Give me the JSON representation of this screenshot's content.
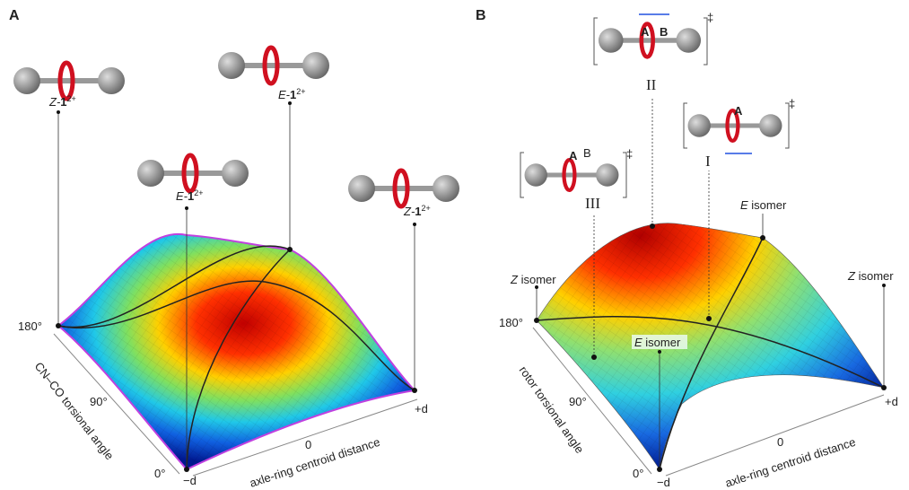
{
  "panel_a": {
    "label": "A",
    "structures": [
      {
        "isomer": "Z-",
        "compound": "1",
        "charge": "2+"
      },
      {
        "isomer": "E-",
        "compound": "1",
        "charge": "2+"
      },
      {
        "isomer": "E-",
        "compound": "1",
        "charge": "2+"
      },
      {
        "isomer": "Z-",
        "compound": "1",
        "charge": "2+"
      }
    ],
    "angle_ticks": [
      "180°",
      "90°",
      "0°"
    ],
    "distance_ticks": [
      "−d",
      "0",
      "+d"
    ],
    "y_axis_label": "CN–CO torsional angle",
    "x_axis_label": "axle-ring centroid distance"
  },
  "panel_b": {
    "label": "B",
    "transition_states": [
      {
        "label": "II",
        "mark": "‡",
        "atoms": [
          "A",
          "B"
        ]
      },
      {
        "label": "I",
        "mark": "‡",
        "atoms": [
          "A"
        ]
      },
      {
        "label": "III",
        "mark": "‡",
        "atoms": [
          "A",
          "B"
        ]
      }
    ],
    "annotations": [
      {
        "isomer": "E",
        "word": "isomer"
      },
      {
        "isomer": "Z",
        "word": "isomer"
      },
      {
        "isomer": "Z",
        "word": "isomer"
      },
      {
        "isomer": "E",
        "word": "isomer"
      }
    ],
    "angle_ticks": [
      "180°",
      "90°",
      "0°"
    ],
    "distance_ticks": [
      "−d",
      "0",
      "+d"
    ],
    "y_axis_label": "rotor torsional angle",
    "x_axis_label": "axle-ring centroid distance"
  }
}
